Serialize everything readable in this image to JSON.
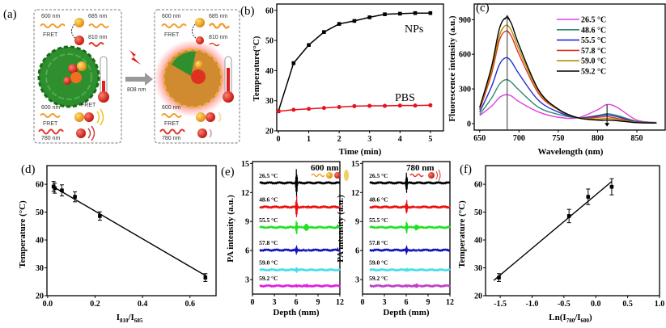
{
  "panel_labels": [
    "(a)",
    "(b)",
    "(c)",
    "(d)",
    "(e)",
    "(f)"
  ],
  "diagram": {
    "before": {
      "ex1": "600 nm",
      "em1": "685 nm",
      "fret1": "FRET",
      "em2": "810 nm",
      "ex2": "600 nm",
      "fret2": "FRET",
      "fret3": "FRET",
      "em3": "780 nm"
    },
    "after": {
      "ex1": "600 nm",
      "em1": "685 nm",
      "fret1": "FRET",
      "em2": "810 nm",
      "ex2": "600 nm",
      "fret3": "FRET",
      "em3": "780 nm"
    },
    "laser": "808 nm",
    "colors": {
      "shell": "#2f8f2f",
      "orange": "#f0a030",
      "red": "#e03a2a",
      "glow": "#ff4040"
    }
  },
  "chart_data": [
    {
      "panel": "b",
      "type": "line",
      "xlabel": "Time (min)",
      "ylabel": "Temperature(°C)",
      "xlim": [
        -0.053,
        5.43
      ],
      "ylim": [
        20,
        62.1
      ],
      "xticks": [
        "0",
        "1",
        "2",
        "3",
        "4",
        "5"
      ],
      "yticks": [
        "20",
        "30",
        "40",
        "50",
        "60"
      ],
      "x": [
        0,
        0.5,
        1,
        1.5,
        2,
        2.5,
        3,
        3.5,
        4,
        4.5,
        5
      ],
      "series": [
        {
          "name": "NPs",
          "color": "#000000",
          "marker": "square",
          "values": [
            26.5,
            42.5,
            48.5,
            52.8,
            55.5,
            56.5,
            57.7,
            58.7,
            58.9,
            59.1,
            59.1
          ]
        },
        {
          "name": "PBS",
          "color": "#e8101a",
          "marker": "circle",
          "values": [
            26.5,
            27.0,
            27.3,
            27.6,
            27.9,
            28.2,
            28.3,
            28.3,
            28.4,
            28.4,
            28.5
          ]
        }
      ]
    },
    {
      "panel": "c",
      "type": "line",
      "xlabel": "Wavelength (nm)",
      "ylabel": "Fluorescence intensity (a.u.)",
      "xlim": [
        643,
        886
      ],
      "ylim": [
        -56,
        1035
      ],
      "xticks": [
        "650",
        "700",
        "750",
        "800",
        "850"
      ],
      "yticks": [
        "0",
        "300",
        "600",
        "900"
      ],
      "x": [
        650,
        665,
        675,
        683,
        690,
        700,
        725,
        750,
        775,
        800,
        812,
        825,
        850,
        875
      ],
      "legend": "top-right",
      "marker_line_x": 685,
      "arrow_x": 812,
      "series": [
        {
          "name": "26.5 °C",
          "color": "#e040e0",
          "values": [
            70,
            150,
            225,
            250,
            240,
            190,
            100,
            55,
            50,
            120,
            165,
            140,
            30,
            10
          ]
        },
        {
          "name": "48.6 °C",
          "color": "#2e8b6e",
          "values": [
            80,
            220,
            340,
            380,
            360,
            290,
            140,
            80,
            50,
            70,
            85,
            70,
            20,
            8
          ]
        },
        {
          "name": "55.5 °C",
          "color": "#1f2fd0",
          "values": [
            100,
            320,
            510,
            570,
            540,
            430,
            200,
            100,
            50,
            65,
            75,
            60,
            15,
            5
          ]
        },
        {
          "name": "57.8 °C",
          "color": "#e03020",
          "values": [
            120,
            430,
            720,
            800,
            760,
            600,
            260,
            120,
            50,
            55,
            60,
            45,
            12,
            5
          ]
        },
        {
          "name": "59.0 °C",
          "color": "#b09000",
          "values": [
            130,
            460,
            760,
            850,
            810,
            640,
            280,
            120,
            50,
            40,
            45,
            35,
            10,
            5
          ]
        },
        {
          "name": "59.2 °C",
          "color": "#000000",
          "values": [
            140,
            490,
            820,
            915,
            870,
            680,
            290,
            125,
            50,
            30,
            30,
            25,
            8,
            5
          ]
        }
      ]
    },
    {
      "panel": "d",
      "type": "scatter",
      "xlabel": {
        "a": "I",
        "s1": "810",
        "b": "/I",
        "s2": "685"
      },
      "ylabel": "Temperature (°C)",
      "xlim": [
        -0.003,
        0.71
      ],
      "ylim": [
        20,
        66.7
      ],
      "xticks": [
        "0.0",
        "0.2",
        "0.4",
        "0.6"
      ],
      "yticks": [
        "20",
        "30",
        "40",
        "50",
        "60"
      ],
      "points": [
        {
          "x": 0.025,
          "y": 59.2,
          "err": 1.8
        },
        {
          "x": 0.03,
          "y": 58.6,
          "err": 1.8
        },
        {
          "x": 0.06,
          "y": 57.8,
          "err": 2.0
        },
        {
          "x": 0.115,
          "y": 55.5,
          "err": 1.8
        },
        {
          "x": 0.22,
          "y": 48.6,
          "err": 1.5
        },
        {
          "x": 0.665,
          "y": 26.5,
          "err": 1.4
        }
      ],
      "fit": {
        "x": [
          0.02,
          0.67
        ],
        "y": [
          59.3,
          27.0
        ]
      }
    },
    {
      "panel": "e-600",
      "type": "line",
      "xlabel": "Depth (mm)",
      "ylabel": "PA intensity (a.u.)",
      "annotation": "600 nm",
      "xlim": [
        0,
        12
      ],
      "ylim": [
        1.5,
        15.2
      ],
      "xticks": [
        "0",
        "3",
        "6",
        "9",
        "12"
      ],
      "yticks": [
        "3",
        "6",
        "9",
        "12",
        "15"
      ],
      "series": [
        {
          "name": "26.5 °C",
          "color": "#000000",
          "baseline": 13.0,
          "spike": 1.5,
          "echo": 0
        },
        {
          "name": "48.6 °C",
          "color": "#e81010",
          "baseline": 10.5,
          "spike": 1.2,
          "echo": 0.1
        },
        {
          "name": "55.5 °C",
          "color": "#20e020",
          "baseline": 8.4,
          "spike": 0.8,
          "echo": 0.4
        },
        {
          "name": "57.8 °C",
          "color": "#1010c0",
          "baseline": 6.05,
          "spike": 0.5,
          "echo": 0.05
        },
        {
          "name": "59.0 °C",
          "color": "#40e0e8",
          "baseline": 4.0,
          "spike": 0.35,
          "echo": 0
        },
        {
          "name": "59.2 °C",
          "color": "#e020e0",
          "baseline": 2.35,
          "spike": 0.15,
          "echo": 0.15
        }
      ]
    },
    {
      "panel": "e-780",
      "type": "line",
      "xlabel": "Depth (mm)",
      "ylabel": "PA intensity (a.u.)",
      "annotation": "780 nm",
      "xlim": [
        0,
        12
      ],
      "ylim": [
        1.5,
        15.2
      ],
      "xticks": [
        "0",
        "3",
        "6",
        "9",
        "12"
      ],
      "yticks": [
        "3",
        "6",
        "9",
        "12",
        "15"
      ],
      "series": [
        {
          "name": "26.5 °C",
          "color": "#000000",
          "baseline": 13.0,
          "spike": 1.1,
          "echo": 0
        },
        {
          "name": "48.6 °C",
          "color": "#e81010",
          "baseline": 10.5,
          "spike": 0.8,
          "echo": 0.05
        },
        {
          "name": "55.5 °C",
          "color": "#20e020",
          "baseline": 8.4,
          "spike": 0.7,
          "echo": 0.3
        },
        {
          "name": "57.8 °C",
          "color": "#1010c0",
          "baseline": 6.05,
          "spike": 0.5,
          "echo": 0.05
        },
        {
          "name": "59.0 °C",
          "color": "#40e0e8",
          "baseline": 4.0,
          "spike": 0.25,
          "echo": 0
        },
        {
          "name": "59.2 °C",
          "color": "#c040c8",
          "baseline": 2.35,
          "spike": 0.15,
          "echo": 0.2
        }
      ]
    },
    {
      "panel": "f",
      "type": "scatter",
      "xlabel": {
        "a": "Ln(I",
        "s1": "780",
        "b": "/I",
        "s2": "600",
        "c": ")"
      },
      "ylabel": "Temperature (°C)",
      "xlim": [
        -1.73,
        1.0
      ],
      "ylim": [
        20,
        66.7
      ],
      "xticks": [
        "-1.5",
        "-1.0",
        "-0.5",
        "0.0",
        "0.5",
        "1.0"
      ],
      "yticks": [
        "20",
        "30",
        "40",
        "50",
        "60"
      ],
      "points": [
        {
          "x": -1.52,
          "y": 26.5,
          "err": 1.4
        },
        {
          "x": -0.42,
          "y": 48.6,
          "err": 2.4
        },
        {
          "x": -0.12,
          "y": 55.5,
          "err": 2.8
        },
        {
          "x": 0.25,
          "y": 59.1,
          "err": 2.9
        }
      ],
      "fit": {
        "x": [
          -1.6,
          0.25
        ],
        "y": [
          25.5,
          61.0
        ]
      }
    }
  ]
}
